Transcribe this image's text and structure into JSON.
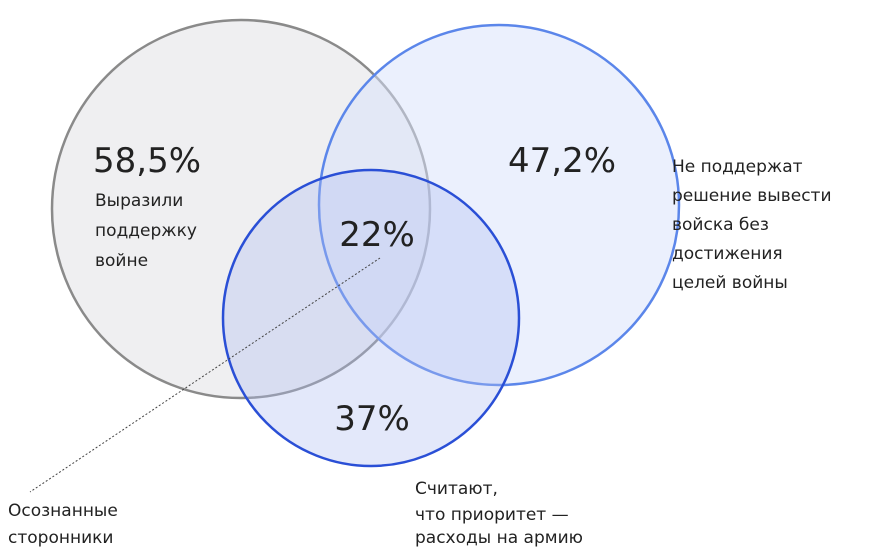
{
  "circles": [
    {
      "value": "58,5%",
      "description": [
        "Выразили",
        "поддержку",
        "войне"
      ]
    },
    {
      "value": "47,2%",
      "description": [
        "Не поддержат",
        "решение вывести",
        "войска без",
        "достижения",
        "целей войны"
      ]
    },
    {
      "value": "37%",
      "description": [
        "Считают,",
        "что приоритет —",
        "расходы на армию"
      ]
    }
  ],
  "intersection": {
    "value": "22%",
    "description": [
      "Осознанные",
      "сторонники"
    ]
  }
}
